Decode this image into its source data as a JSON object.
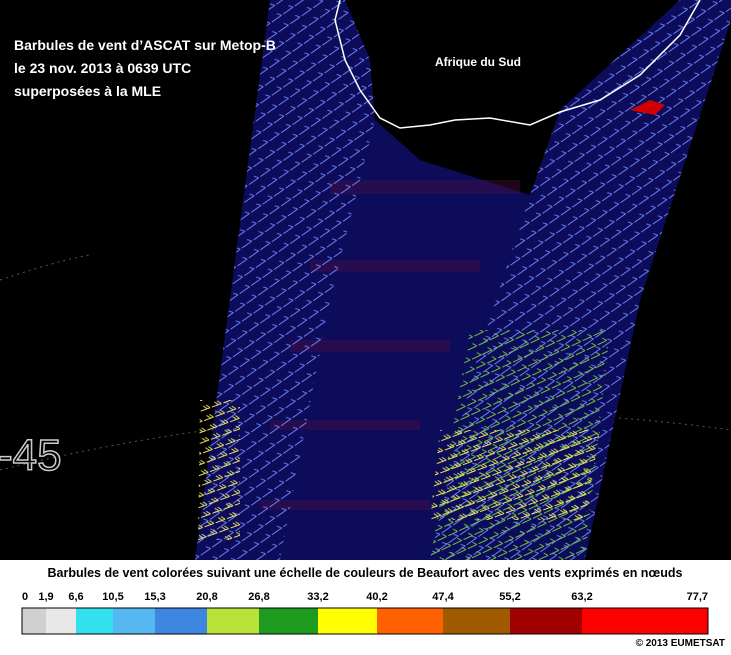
{
  "overlay": {
    "title_lines": [
      "Barbules de vent d’ASCAT sur Metop-B",
      "le 23 nov. 2013 à 0639 UTC",
      "superposées à la MLE"
    ],
    "region_label": "Afrique du Sud",
    "latitude_label": "-45"
  },
  "legend": {
    "title": "Barbules de vent colorées suivant une échelle de couleurs de Beaufort avec des vents exprimés en nœuds",
    "ticks": [
      "0",
      "1,9",
      "6,6",
      "10,5",
      "15,3",
      "20,8",
      "26,8",
      "33,2",
      "40,2",
      "47,4",
      "55,2",
      "63,2",
      "77,7"
    ],
    "colors": [
      "#d0d0d0",
      "#e8e8e8",
      "#33e0ee",
      "#55b8f0",
      "#3f86e0",
      "#b8e23a",
      "#1e9a1e",
      "#ffff00",
      "#ff6000",
      "#a05a00",
      "#a00000",
      "#ff0000"
    ]
  },
  "copyright": "© 2013 EUMETSAT"
}
